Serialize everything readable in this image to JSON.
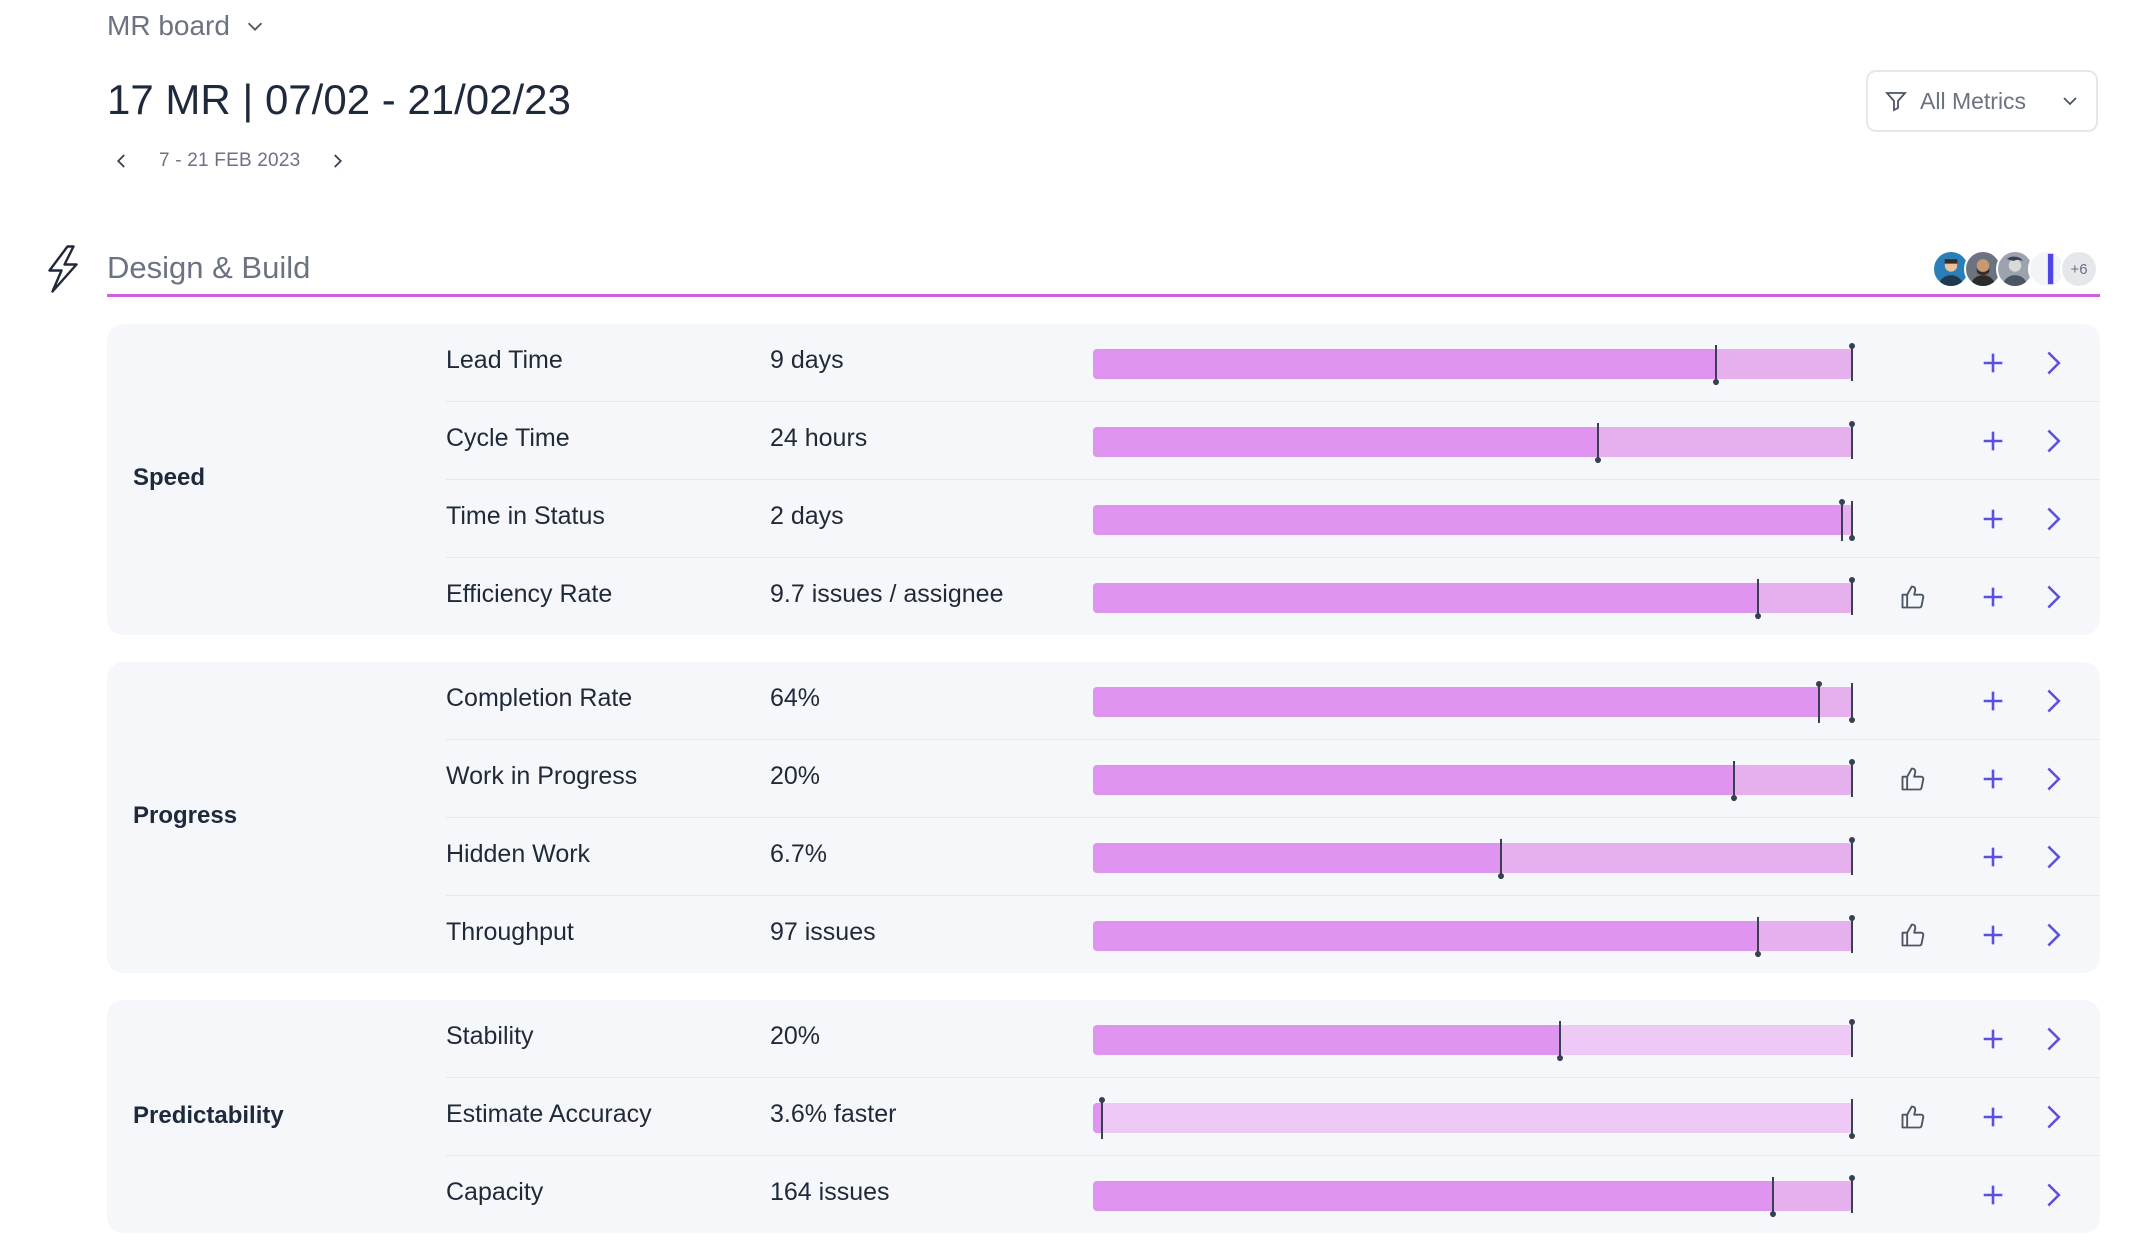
{
  "header": {
    "board_name": "MR board",
    "title": "17 MR | 07/02 - 21/02/23",
    "date_range": "7 - 21 FEB 2023",
    "filter_label": "All Metrics"
  },
  "section": {
    "title": "Design & Build",
    "accent_color": "#d25fe0",
    "avatars_more": "+6"
  },
  "colors": {
    "fill": "#df94f0",
    "track_light": "#e6b0ef",
    "track_lighter": "#efc9f5"
  },
  "groups": [
    {
      "label": "Speed",
      "metrics": [
        {
          "name": "Lead Time",
          "value": "9 days",
          "progress": 0.82,
          "target": 1.0,
          "thumb": false
        },
        {
          "name": "Cycle Time",
          "value": "24 hours",
          "progress": 0.665,
          "target": 1.0,
          "thumb": false
        },
        {
          "name": "Time in Status",
          "value": "2 days",
          "progress": 0.985,
          "target": 1.0,
          "thumb": false
        },
        {
          "name": "Efficiency Rate",
          "value": "9.7 issues / assignee",
          "progress": 0.875,
          "target": 1.0,
          "thumb": true
        }
      ]
    },
    {
      "label": "Progress",
      "metrics": [
        {
          "name": "Completion Rate",
          "value": "64%",
          "progress": 0.955,
          "target": 1.0,
          "thumb": false
        },
        {
          "name": "Work in Progress",
          "value": "20%",
          "progress": 0.843,
          "target": 1.0,
          "thumb": true
        },
        {
          "name": "Hidden Work",
          "value": "6.7%",
          "progress": 0.537,
          "target": 1.0,
          "thumb": false
        },
        {
          "name": "Throughput",
          "value": "97 issues",
          "progress": 0.875,
          "target": 1.0,
          "thumb": true
        }
      ]
    },
    {
      "label": "Predictability",
      "metrics": [
        {
          "name": "Stability",
          "value": "20%",
          "progress": 0.615,
          "target": 1.0,
          "thumb": false
        },
        {
          "name": "Estimate Accuracy",
          "value": "3.6% faster",
          "progress": 0.012,
          "target": 1.0,
          "thumb": true
        },
        {
          "name": "Capacity",
          "value": "164 issues",
          "progress": 0.895,
          "target": 1.0,
          "thumb": false
        }
      ]
    }
  ]
}
